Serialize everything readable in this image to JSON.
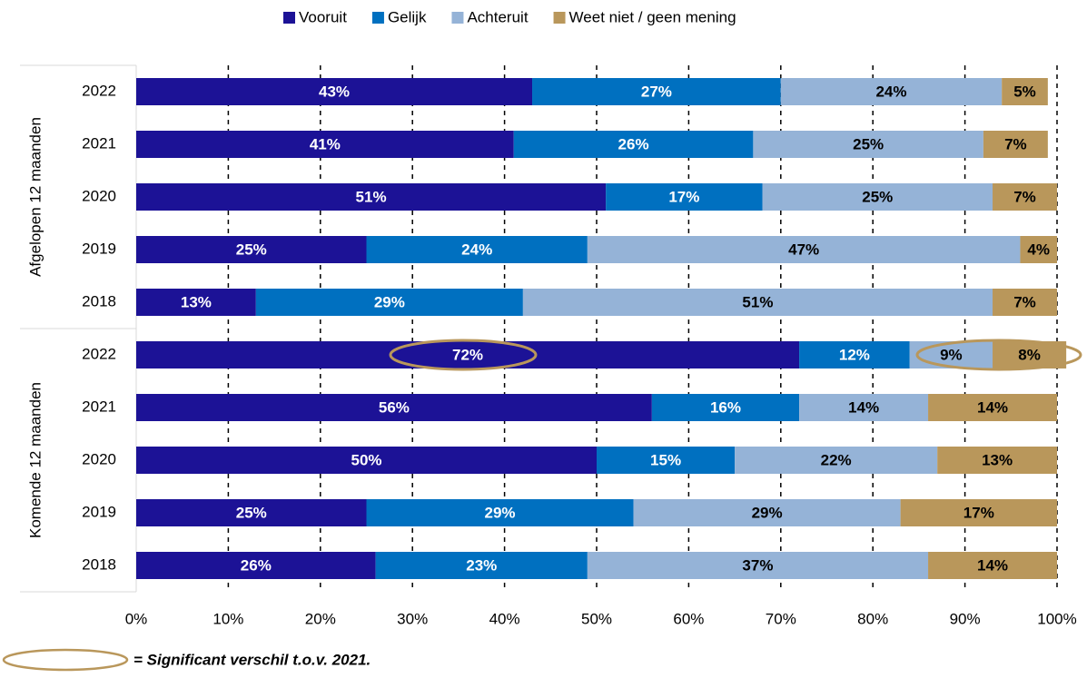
{
  "chart_data": {
    "type": "stacked_barh",
    "categories": [
      "2022",
      "2021",
      "2020",
      "2019",
      "2018",
      "2022",
      "2021",
      "2020",
      "2019",
      "2018"
    ],
    "groups": [
      {
        "label": "Afgelopen 12 maanden",
        "start": 0,
        "end": 4
      },
      {
        "label": "Komende 12 maanden",
        "start": 5,
        "end": 9
      }
    ],
    "series": [
      {
        "name": "Vooruit",
        "color": "#1c1296",
        "label_color": "#ffffff",
        "values": [
          43,
          41,
          51,
          25,
          13,
          72,
          56,
          50,
          25,
          26
        ],
        "value_labels": [
          "43%",
          "41%",
          "51%",
          "25%",
          "13%",
          "72%",
          "56%",
          "50%",
          "25%",
          "26%"
        ]
      },
      {
        "name": "Gelijk",
        "color": "#0070c0",
        "label_color": "#ffffff",
        "values": [
          27,
          26,
          17,
          24,
          29,
          12,
          16,
          15,
          29,
          23
        ],
        "value_labels": [
          "27%",
          "26%",
          "17%",
          "24%",
          "29%",
          "12%",
          "16%",
          "15%",
          "29%",
          "23%"
        ]
      },
      {
        "name": "Achteruit",
        "color": "#95b3d7",
        "label_color": "#000000",
        "values": [
          24,
          25,
          25,
          47,
          51,
          9,
          14,
          22,
          29,
          37
        ],
        "value_labels": [
          "24%",
          "25%",
          "25%",
          "47%",
          "51%",
          "9%",
          "14%",
          "22%",
          "29%",
          "37%"
        ]
      },
      {
        "name": "Weet niet / geen mening",
        "color": "#b9975b",
        "label_color": "#000000",
        "values": [
          5,
          7,
          7,
          4,
          7,
          8,
          14,
          13,
          17,
          14
        ],
        "value_labels": [
          "5%",
          "7%",
          "7%",
          "4%",
          "7%",
          "8%",
          "14%",
          "13%",
          "17%",
          "14%"
        ]
      }
    ],
    "xlim": [
      0,
      100
    ],
    "xticks": [
      {
        "value": 0,
        "label": "0%"
      },
      {
        "value": 10,
        "label": "10%"
      },
      {
        "value": 20,
        "label": "20%"
      },
      {
        "value": 30,
        "label": "30%"
      },
      {
        "value": 40,
        "label": "40%"
      },
      {
        "value": 50,
        "label": "50%"
      },
      {
        "value": 60,
        "label": "60%"
      },
      {
        "value": 70,
        "label": "70%"
      },
      {
        "value": 80,
        "label": "80%"
      },
      {
        "value": 90,
        "label": "90%"
      },
      {
        "value": 100,
        "label": "100%"
      }
    ],
    "grid": true,
    "legend": "top",
    "footnote": "= Significant verschil t.o.v. 2021."
  }
}
